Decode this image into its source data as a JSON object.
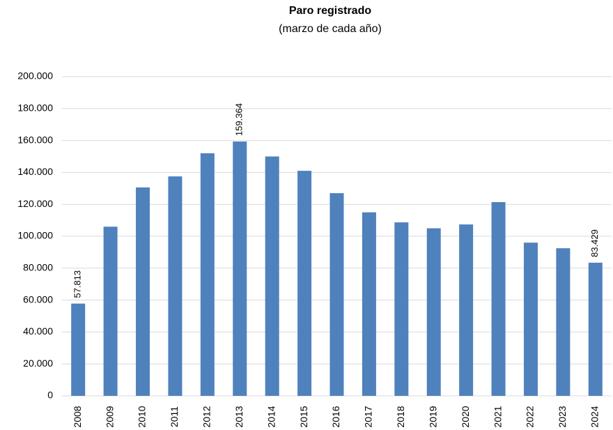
{
  "chart_data": {
    "type": "bar",
    "title": "Paro registrado",
    "subtitle": "(marzo de cada año)",
    "categories": [
      "2008",
      "2009",
      "2010",
      "2011",
      "2012",
      "2013",
      "2014",
      "2015",
      "2016",
      "2017",
      "2018",
      "2019",
      "2020",
      "2021",
      "2022",
      "2023",
      "2024"
    ],
    "values": [
      57813,
      106000,
      130600,
      137500,
      152000,
      159364,
      150000,
      141000,
      127000,
      115000,
      108700,
      105000,
      107400,
      121400,
      96000,
      92500,
      83429
    ],
    "value_labels": [
      "57.813",
      null,
      null,
      null,
      null,
      "159.364",
      null,
      null,
      null,
      null,
      null,
      null,
      null,
      null,
      null,
      null,
      "83.429"
    ],
    "color": "#4f81bd",
    "ylim": [
      0,
      200000
    ],
    "yticks": [
      0,
      {
        "value": 20000,
        "label": "20.000"
      },
      {
        "value": 40000,
        "label": "40.000"
      },
      {
        "value": 60000,
        "label": "60.000"
      },
      {
        "value": 80000,
        "label": "80.000"
      },
      {
        "value": 100000,
        "label": "100.000"
      },
      {
        "value": 120000,
        "label": "120.000"
      },
      {
        "value": 140000,
        "label": "140.000"
      },
      {
        "value": 160000,
        "label": "160.000"
      },
      {
        "value": 180000,
        "label": "180.000"
      },
      {
        "value": 200000,
        "label": "200.000"
      }
    ],
    "grid": true
  }
}
